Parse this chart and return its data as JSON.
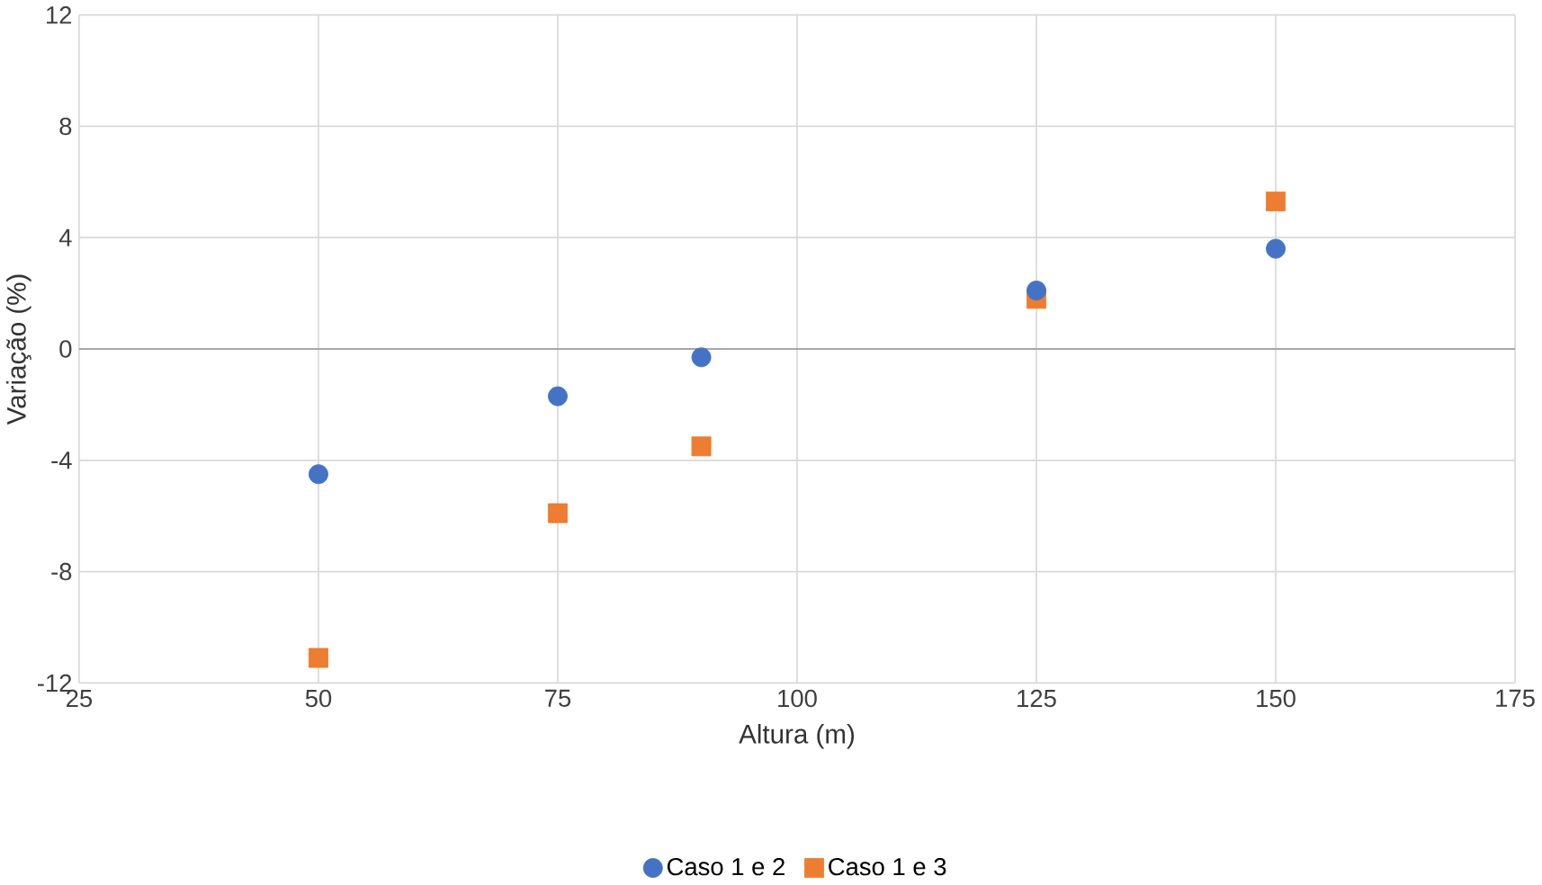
{
  "chart_data": {
    "type": "scatter",
    "xlabel": "Altura (m)",
    "ylabel": "Variação (%)",
    "xlim": [
      25,
      175
    ],
    "xticks": [
      25,
      50,
      75,
      100,
      125,
      150,
      175
    ],
    "ylim": [
      -12,
      12
    ],
    "yticks": [
      -12,
      -8,
      -4,
      0,
      4,
      8,
      12
    ],
    "grid": true,
    "legend": "bottom",
    "series": [
      {
        "name": "Caso 1 e 2",
        "color": "#4472c4",
        "marker": "circle",
        "x": [
          50,
          75,
          90,
          125,
          150
        ],
        "values": [
          -4.5,
          -1.7,
          -0.3,
          2.1,
          3.6
        ]
      },
      {
        "name": "Caso 1 e 3",
        "color": "#ed7d31",
        "marker": "square",
        "x": [
          50,
          75,
          90,
          125,
          150
        ],
        "values": [
          -11.1,
          -5.9,
          -3.5,
          1.8,
          5.3
        ]
      }
    ]
  }
}
